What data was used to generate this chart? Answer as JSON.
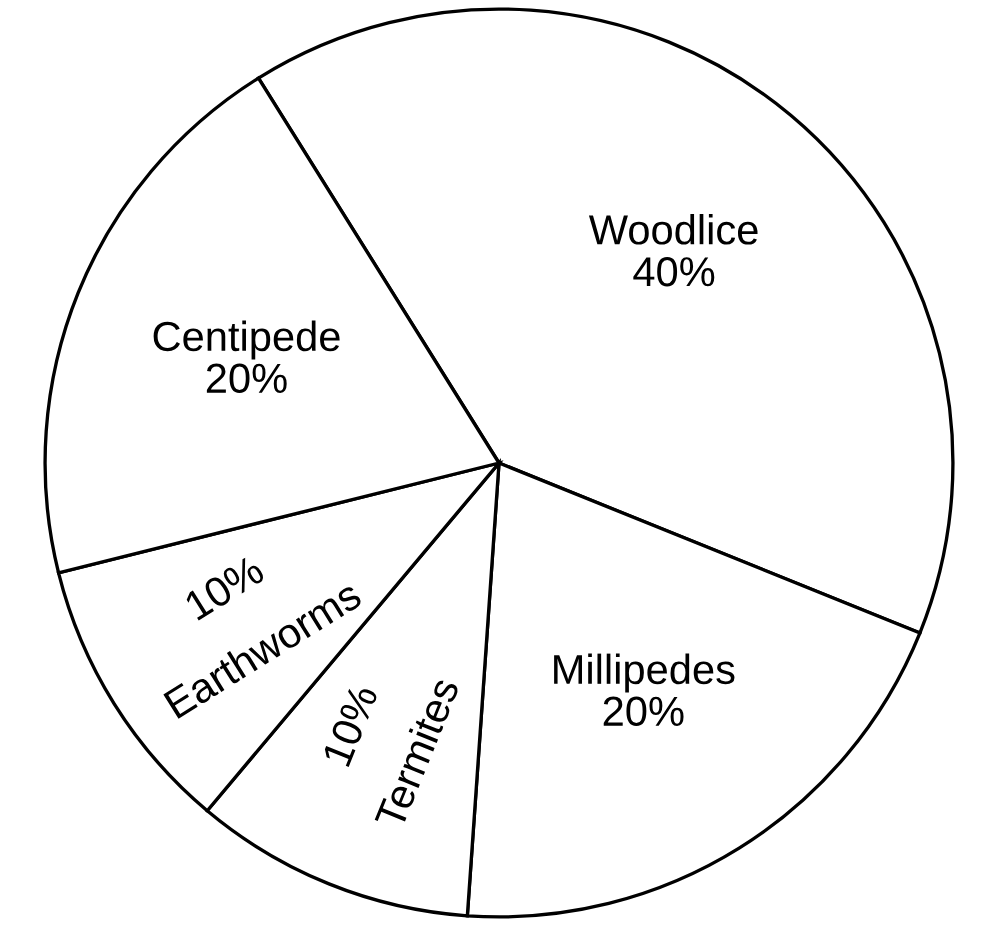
{
  "chart_data": {
    "type": "pie",
    "categories": [
      "Woodlice",
      "Millipedes",
      "Termites",
      "Earthworms",
      "Centipede"
    ],
    "values": [
      40,
      20,
      10,
      10,
      20
    ],
    "value_labels": [
      "40%",
      "20%",
      "10%",
      "10%",
      "20%"
    ],
    "colors": [
      "#ffffff",
      "#ffffff",
      "#ffffff",
      "#ffffff",
      "#ffffff"
    ]
  }
}
